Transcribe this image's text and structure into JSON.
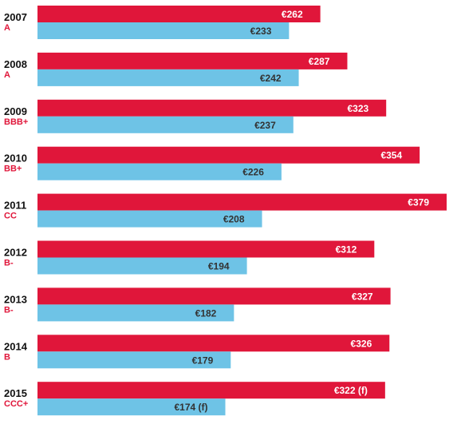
{
  "chart_data": {
    "type": "bar",
    "orientation": "horizontal",
    "categories": [
      "2007",
      "2008",
      "2009",
      "2010",
      "2011",
      "2012",
      "2013",
      "2014",
      "2015"
    ],
    "ratings": [
      "A",
      "A",
      "BBB+",
      "BB+",
      "CC",
      "B-",
      "B-",
      "B",
      "CCC+"
    ],
    "series": [
      {
        "values": [
          262,
          287,
          323,
          354,
          379,
          312,
          327,
          326,
          322
        ],
        "labels": [
          "€262",
          "€287",
          "€323",
          "€354",
          "€379",
          "€312",
          "€327",
          "€326",
          "€322 (f)"
        ],
        "color": "#e0163a"
      },
      {
        "values": [
          233,
          242,
          237,
          226,
          208,
          194,
          182,
          179,
          174
        ],
        "labels": [
          "€233",
          "€242",
          "€237",
          "€226",
          "€208",
          "€194",
          "€182",
          "€179",
          "€174 (f)"
        ],
        "color": "#6ec3e6"
      }
    ],
    "rating_color": "#e0163a",
    "label_colors": [
      "#ffffff",
      "#333333"
    ],
    "grid": false,
    "legend": "none"
  }
}
